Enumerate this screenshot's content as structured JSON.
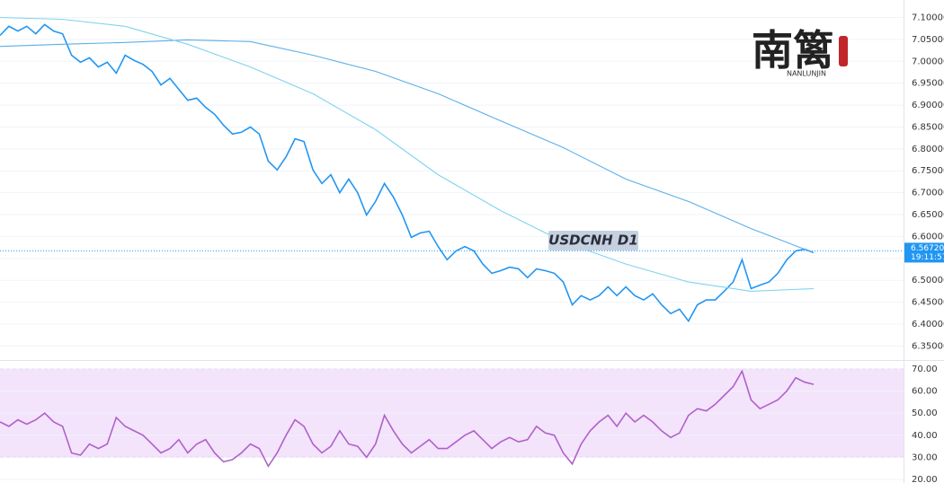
{
  "chart_data": [
    {
      "type": "line",
      "title": "USDCNH  D1",
      "logo": "南篱",
      "logo_subtitle": "NANLUNJIN",
      "ylim": [
        6.32,
        7.14
      ],
      "yticks": [
        {
          "value": 6.35,
          "label": "6.35000"
        },
        {
          "value": 6.4,
          "label": "6.40000"
        },
        {
          "value": 6.45,
          "label": "6.45000"
        },
        {
          "value": 6.5,
          "label": "6.50000"
        },
        {
          "value": 6.55,
          "label": "6.55000"
        },
        {
          "value": 6.6,
          "label": "6.60000"
        },
        {
          "value": 6.65,
          "label": "6.65000"
        },
        {
          "value": 6.7,
          "label": "6.70000"
        },
        {
          "value": 6.75,
          "label": "6.75000"
        },
        {
          "value": 6.8,
          "label": "6.80000"
        },
        {
          "value": 6.85,
          "label": "6.85000"
        },
        {
          "value": 6.9,
          "label": "6.90000"
        },
        {
          "value": 6.95,
          "label": "6.95000"
        },
        {
          "value": 7.0,
          "label": "7.00000"
        },
        {
          "value": 7.05,
          "label": "7.05000"
        },
        {
          "value": 7.1,
          "label": "7.10000"
        }
      ],
      "grid": true,
      "current_price": {
        "value": 6.5672,
        "label": "6.56720"
      },
      "time_label": "19:11:57",
      "series": [
        {
          "color": "#2196f3",
          "values": [
            7.059,
            7.08,
            7.069,
            7.08,
            7.063,
            7.084,
            7.069,
            7.063,
            7.014,
            6.998,
            7.008,
            6.987,
            6.998,
            6.973,
            7.014,
            7.002,
            6.993,
            6.977,
            6.946,
            6.961,
            6.936,
            6.911,
            6.916,
            6.895,
            6.879,
            6.854,
            6.834,
            6.838,
            6.85,
            6.834,
            6.772,
            6.752,
            6.782,
            6.823,
            6.817,
            6.752,
            6.721,
            6.741,
            6.7,
            6.731,
            6.7,
            6.649,
            6.68,
            6.721,
            6.69,
            6.649,
            6.598,
            6.608,
            6.612,
            6.577,
            6.547,
            6.567,
            6.577,
            6.567,
            6.537,
            6.516,
            6.522,
            6.53,
            6.526,
            6.506,
            6.526,
            6.522,
            6.516,
            6.496,
            6.444,
            6.465,
            6.455,
            6.465,
            6.485,
            6.465,
            6.485,
            6.465,
            6.455,
            6.469,
            6.444,
            6.424,
            6.434,
            6.407,
            6.444,
            6.455,
            6.455,
            6.475,
            6.496,
            6.547,
            6.481,
            6.489,
            6.496,
            6.516,
            6.547,
            6.567,
            6.571,
            6.563
          ]
        },
        {
          "color": "#5aaee8",
          "values": [
            7.034,
            7.039,
            7.043,
            7.049,
            7.045,
            7.014,
            6.977,
            6.926,
            6.864,
            6.803,
            6.731,
            6.68,
            6.618,
            6.563
          ]
        },
        {
          "color": "#7fd3ef",
          "values": [
            7.1,
            7.096,
            7.08,
            7.039,
            6.987,
            6.926,
            6.844,
            6.741,
            6.659,
            6.588,
            6.537,
            6.496,
            6.475,
            6.481
          ]
        }
      ]
    },
    {
      "type": "line",
      "ylim": [
        18.4,
        72.8
      ],
      "yticks": [
        {
          "value": 20,
          "label": "20.00"
        },
        {
          "value": 30,
          "label": "30.00"
        },
        {
          "value": 40,
          "label": "40.00"
        },
        {
          "value": 50,
          "label": "50.00"
        },
        {
          "value": 60,
          "label": "60.00"
        },
        {
          "value": 70,
          "label": "70.00"
        }
      ],
      "grid": true,
      "band": [
        30,
        70
      ],
      "band_color": "#f3e3fb",
      "series": [
        {
          "color": "#b061c9",
          "values": [
            46,
            44,
            47,
            45,
            47,
            50,
            46,
            44,
            32,
            31,
            36,
            34,
            36,
            48,
            44,
            42,
            40,
            36,
            32,
            34,
            38,
            32,
            36,
            38,
            32,
            28,
            29,
            32,
            36,
            34,
            26,
            32,
            40,
            47,
            44,
            36,
            32,
            35,
            42,
            36,
            35,
            30,
            36,
            49,
            42,
            36,
            32,
            35,
            38,
            34,
            34,
            37,
            40,
            42,
            38,
            34,
            37,
            39,
            37,
            38,
            44,
            41,
            40,
            32,
            27,
            36,
            42,
            46,
            49,
            44,
            50,
            46,
            49,
            46,
            42,
            39,
            41,
            49,
            52,
            51,
            54,
            58,
            62,
            69,
            56,
            52,
            54,
            56,
            60,
            66,
            64,
            63
          ]
        }
      ]
    }
  ]
}
